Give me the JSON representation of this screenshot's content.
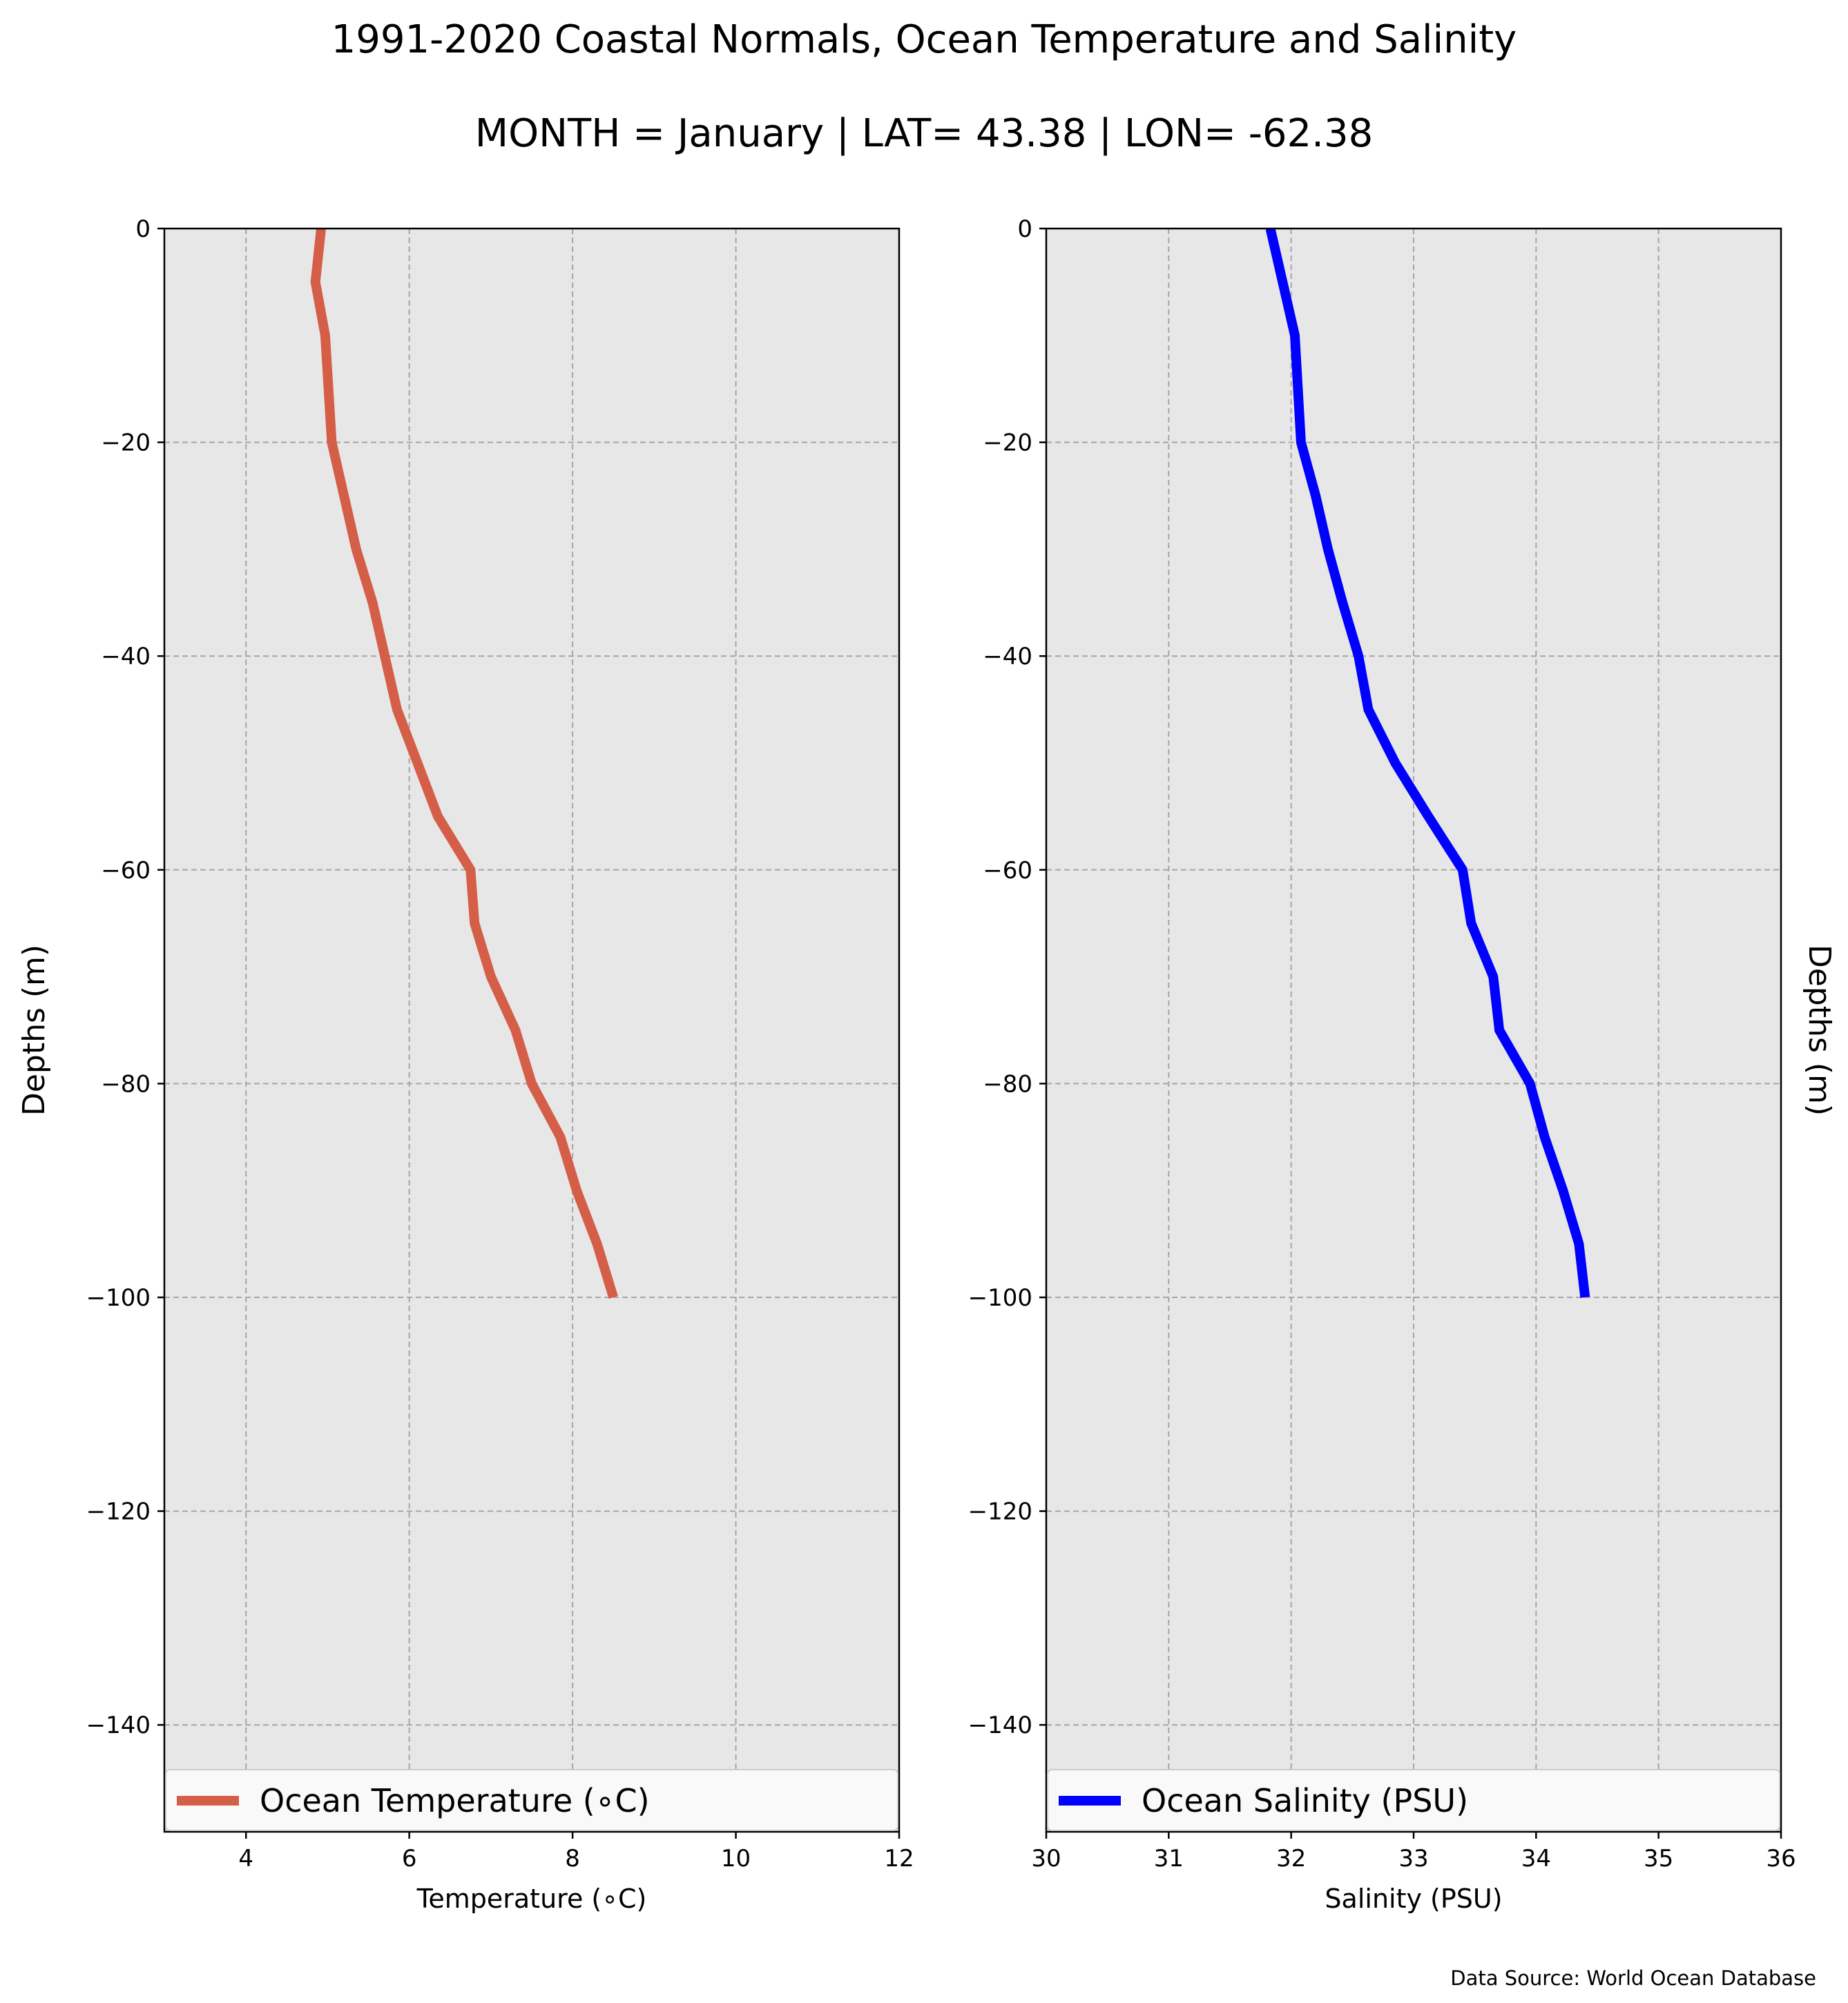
{
  "figure": {
    "title": "1991-2020 Coastal Normals, Ocean Temperature and Salinity",
    "subtitle": "MONTH = January | LAT= 43.38 | LON= -62.38",
    "source": "Data Source: World Ocean Database"
  },
  "chart_data": [
    {
      "type": "line",
      "xlabel": "Temperature (∘C)",
      "ylabel": "Depths (m)",
      "ylabel_side": "left",
      "xlim": [
        3,
        12
      ],
      "ylim": [
        -150,
        0
      ],
      "xticks": [
        4,
        6,
        8,
        10,
        12
      ],
      "xtick_labels": [
        "4",
        "6",
        "8",
        "10",
        "12"
      ],
      "yticks": [
        0,
        -20,
        -40,
        -60,
        -80,
        -100,
        -120,
        -140
      ],
      "ytick_labels": [
        "0",
        "−20",
        "−40",
        "−60",
        "−80",
        "−100",
        "−120",
        "−140"
      ],
      "grid": true,
      "legend": "bottom",
      "series": [
        {
          "name": "Ocean Temperature (∘C)",
          "color": "#d55e48",
          "x": [
            4.92,
            4.85,
            4.97,
            5.05,
            5.2,
            5.35,
            5.55,
            5.7,
            5.85,
            6.1,
            6.35,
            6.75,
            6.8,
            7.0,
            7.3,
            7.5,
            7.85,
            8.05,
            8.3,
            8.5
          ],
          "y": [
            0,
            -5,
            -10,
            -20,
            -25,
            -30,
            -35,
            -40,
            -45,
            -50,
            -55,
            -60,
            -65,
            -70,
            -75,
            -80,
            -85,
            -90,
            -95,
            -100
          ]
        }
      ]
    },
    {
      "type": "line",
      "xlabel": "Salinity (PSU)",
      "ylabel": "Depths (m)",
      "ylabel_side": "right",
      "xlim": [
        30,
        36
      ],
      "ylim": [
        -150,
        0
      ],
      "xticks": [
        30,
        31,
        32,
        33,
        34,
        35,
        36
      ],
      "xtick_labels": [
        "30",
        "31",
        "32",
        "33",
        "34",
        "35",
        "36"
      ],
      "yticks": [
        0,
        -20,
        -40,
        -60,
        -80,
        -100,
        -120,
        -140
      ],
      "ytick_labels": [
        "0",
        "−20",
        "−40",
        "−60",
        "−80",
        "−100",
        "−120",
        "−140"
      ],
      "grid": true,
      "legend": "bottom",
      "series": [
        {
          "name": "Ocean Salinity (PSU)",
          "color": "#0000ff",
          "x": [
            31.83,
            31.93,
            32.03,
            32.08,
            32.2,
            32.3,
            32.42,
            32.55,
            32.63,
            32.85,
            33.12,
            33.4,
            33.47,
            33.65,
            33.7,
            33.95,
            34.07,
            34.22,
            34.35,
            34.4
          ],
          "y": [
            0,
            -5,
            -10,
            -20,
            -25,
            -30,
            -35,
            -40,
            -45,
            -50,
            -55,
            -60,
            -65,
            -70,
            -75,
            -80,
            -85,
            -90,
            -95,
            -100
          ]
        }
      ]
    }
  ]
}
